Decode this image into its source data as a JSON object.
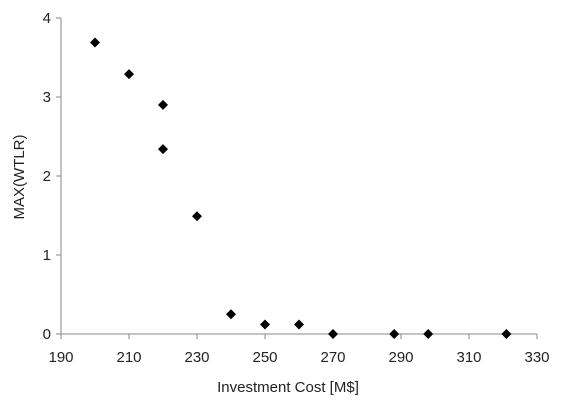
{
  "chart_data": {
    "type": "scatter",
    "title": "",
    "xlabel": "Investment Cost [M$]",
    "ylabel": "MAX(WTLR)",
    "xlim": [
      190,
      330
    ],
    "ylim": [
      0,
      4
    ],
    "xticks": [
      190,
      210,
      230,
      250,
      270,
      290,
      310,
      330
    ],
    "yticks": [
      0,
      1,
      2,
      3,
      4
    ],
    "grid": false,
    "legend": "none",
    "marker": "diamond",
    "marker_color": "#000000",
    "axis_color": "#888888",
    "points": [
      {
        "x": 200,
        "y": 3.69
      },
      {
        "x": 210,
        "y": 3.29
      },
      {
        "x": 220,
        "y": 2.9
      },
      {
        "x": 220,
        "y": 2.34
      },
      {
        "x": 230,
        "y": 1.49
      },
      {
        "x": 240,
        "y": 0.25
      },
      {
        "x": 250,
        "y": 0.12
      },
      {
        "x": 260,
        "y": 0.12
      },
      {
        "x": 270,
        "y": 0.0
      },
      {
        "x": 288,
        "y": 0.0
      },
      {
        "x": 298,
        "y": 0.0
      },
      {
        "x": 321,
        "y": 0.0
      }
    ]
  }
}
